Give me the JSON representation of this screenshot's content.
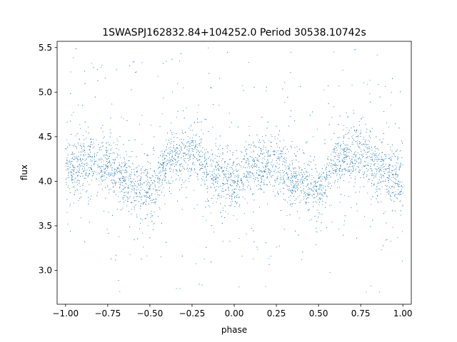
{
  "chart_data": {
    "type": "scatter",
    "title": "1SWASPJ162832.84+104252.0 Period 30538.10742s",
    "xlabel": "phase",
    "ylabel": "flux",
    "xlim": [
      -1.05,
      1.05
    ],
    "ylim": [
      2.62,
      5.57
    ],
    "x_ticks": [
      -1.0,
      -0.75,
      -0.5,
      -0.25,
      0.0,
      0.25,
      0.5,
      0.75,
      1.0
    ],
    "x_tick_labels": [
      "−1.00",
      "−0.75",
      "−0.50",
      "−0.25",
      "0.00",
      "0.25",
      "0.50",
      "0.75",
      "1.00"
    ],
    "y_ticks": [
      3.0,
      3.5,
      4.0,
      4.5,
      5.0,
      5.5
    ],
    "y_tick_labels": [
      "3.0",
      "3.5",
      "4.0",
      "4.5",
      "5.0",
      "5.5"
    ],
    "grid": false,
    "legend": "none",
    "marker_color": "#1f77b4",
    "series": [
      {
        "profile_x": [
          -1.0,
          -0.875,
          -0.75,
          -0.625,
          -0.5,
          -0.375,
          -0.25,
          -0.125,
          0.0,
          0.125,
          0.25,
          0.375,
          0.5,
          0.625,
          0.75,
          0.875,
          1.0
        ],
        "profile_y": [
          4.1,
          4.22,
          4.18,
          4.0,
          3.9,
          4.25,
          4.32,
          4.1,
          3.98,
          4.18,
          4.22,
          4.0,
          3.9,
          4.25,
          4.32,
          4.1,
          3.98
        ],
        "core_scatter": 0.15,
        "outlier_range": [
          2.75,
          5.52
        ]
      }
    ]
  }
}
